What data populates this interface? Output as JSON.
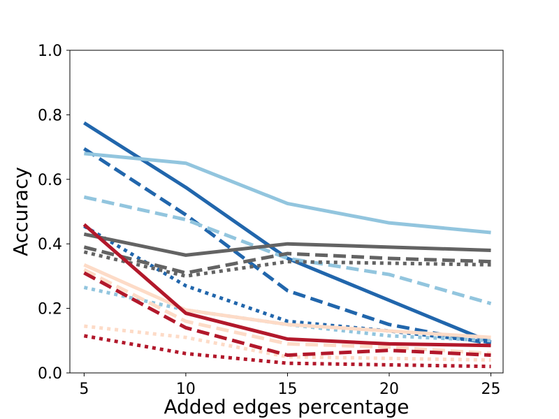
{
  "chart_data": {
    "type": "line",
    "title": "",
    "xlabel": "Added edges percentage",
    "ylabel": "Accuracy",
    "x": [
      5,
      10,
      15,
      20,
      25
    ],
    "xticks": [
      "5",
      "10",
      "15",
      "20",
      "25"
    ],
    "yticks": [
      "0.0",
      "0.2",
      "0.4",
      "0.6",
      "0.8",
      "1.0"
    ],
    "xlim": [
      4.3,
      25.6
    ],
    "ylim": [
      0,
      1
    ],
    "grid": false,
    "series": [
      {
        "color": "#2166ac",
        "style": "solid",
        "values": [
          0.775,
          0.575,
          0.355,
          0.225,
          0.095
        ]
      },
      {
        "color": "#2166ac",
        "style": "dashed",
        "values": [
          0.695,
          0.49,
          0.255,
          0.15,
          0.09
        ]
      },
      {
        "color": "#2166ac",
        "style": "dotted",
        "values": [
          0.455,
          0.27,
          0.16,
          0.13,
          0.095
        ]
      },
      {
        "color": "#92c5de",
        "style": "solid",
        "values": [
          0.68,
          0.65,
          0.525,
          0.465,
          0.435
        ]
      },
      {
        "color": "#92c5de",
        "style": "dashed",
        "values": [
          0.545,
          0.475,
          0.355,
          0.305,
          0.215
        ]
      },
      {
        "color": "#92c5de",
        "style": "dotted",
        "values": [
          0.265,
          0.195,
          0.15,
          0.115,
          0.1
        ]
      },
      {
        "color": "#636363",
        "style": "solid",
        "values": [
          0.43,
          0.365,
          0.4,
          0.39,
          0.38
        ]
      },
      {
        "color": "#636363",
        "style": "dashed",
        "values": [
          0.39,
          0.31,
          0.37,
          0.355,
          0.345
        ]
      },
      {
        "color": "#636363",
        "style": "dotted",
        "values": [
          0.375,
          0.3,
          0.345,
          0.34,
          0.335
        ]
      },
      {
        "color": "#fddbc7",
        "style": "solid",
        "values": [
          0.335,
          0.195,
          0.15,
          0.13,
          0.11
        ]
      },
      {
        "color": "#fddbc7",
        "style": "dashed",
        "values": [
          0.32,
          0.16,
          0.09,
          0.08,
          0.06
        ]
      },
      {
        "color": "#fddbc7",
        "style": "dotted",
        "values": [
          0.145,
          0.11,
          0.05,
          0.045,
          0.04
        ]
      },
      {
        "color": "#b2182b",
        "style": "solid",
        "values": [
          0.46,
          0.185,
          0.105,
          0.09,
          0.085
        ]
      },
      {
        "color": "#b2182b",
        "style": "dashed",
        "values": [
          0.31,
          0.14,
          0.055,
          0.07,
          0.055
        ]
      },
      {
        "color": "#b2182b",
        "style": "dotted",
        "values": [
          0.115,
          0.06,
          0.03,
          0.025,
          0.02
        ]
      }
    ]
  }
}
